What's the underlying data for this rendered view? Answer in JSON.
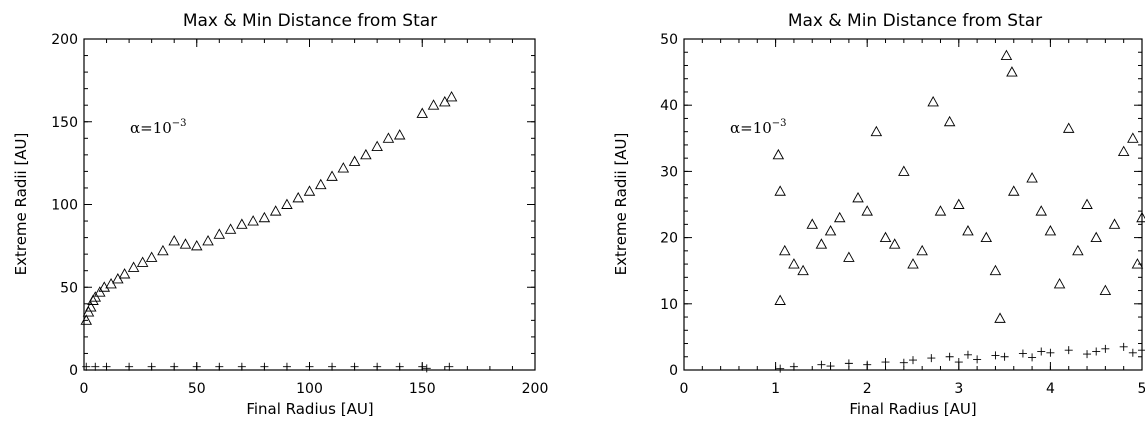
{
  "chart_data": [
    {
      "type": "scatter",
      "title": "Max & Min Distance from Star",
      "xlabel": "Final Radius [AU]",
      "ylabel": "Extreme Radii [AU]",
      "xlim": [
        0,
        200
      ],
      "ylim": [
        0,
        200
      ],
      "xticks": [
        "0",
        "50",
        "100",
        "150",
        "200"
      ],
      "yticks": [
        "0",
        "50",
        "100",
        "150",
        "200"
      ],
      "annotation": {
        "alpha": "α=10",
        "exponent": "−3"
      },
      "grid": false,
      "legend": "none",
      "series": [
        {
          "marker": "triangle",
          "x": [
            1,
            2,
            3,
            4,
            5,
            7,
            9,
            12,
            15,
            18,
            22,
            26,
            30,
            35,
            40,
            45,
            50,
            55,
            60,
            65,
            70,
            75,
            80,
            85,
            90,
            95,
            100,
            105,
            110,
            115,
            120,
            125,
            130,
            135,
            140,
            150,
            155,
            160,
            163
          ],
          "y": [
            30,
            35,
            38,
            42,
            44,
            47,
            50,
            52,
            55,
            58,
            62,
            65,
            68,
            72,
            78,
            76,
            75,
            78,
            82,
            85,
            88,
            90,
            92,
            96,
            100,
            104,
            108,
            112,
            117,
            122,
            126,
            130,
            135,
            140,
            142,
            155,
            160,
            162,
            165
          ]
        },
        {
          "marker": "plus",
          "x": [
            1,
            5,
            10,
            20,
            30,
            40,
            50,
            60,
            70,
            80,
            90,
            100,
            110,
            120,
            130,
            140,
            150,
            152,
            162
          ],
          "y": [
            2,
            2,
            2,
            2,
            2,
            2,
            2,
            2,
            2,
            2,
            2,
            2,
            2,
            2,
            2,
            2,
            2,
            1,
            2
          ]
        }
      ]
    },
    {
      "type": "scatter",
      "title": "Max & Min Distance from Star",
      "xlabel": "Final Radius [AU]",
      "ylabel": "Extreme Radii [AU]",
      "xlim": [
        0,
        5
      ],
      "ylim": [
        0,
        50
      ],
      "xticks": [
        "0",
        "1",
        "2",
        "3",
        "4",
        "5"
      ],
      "yticks": [
        "0",
        "10",
        "20",
        "30",
        "40",
        "50"
      ],
      "annotation": {
        "alpha": "α=10",
        "exponent": "−3"
      },
      "grid": false,
      "legend": "none",
      "series": [
        {
          "marker": "triangle",
          "x": [
            1.03,
            1.05,
            1.1,
            1.2,
            1.4,
            1.6,
            1.8,
            2.0,
            2.1,
            2.2,
            2.4,
            2.6,
            2.72,
            2.9,
            3.0,
            3.3,
            3.45,
            3.52,
            3.58,
            3.8,
            4.0,
            4.2,
            4.4,
            4.6,
            4.8,
            4.9,
            5.0,
            1.05,
            1.3,
            1.5,
            1.7,
            1.9,
            2.3,
            2.5,
            2.8,
            3.1,
            3.4,
            3.6,
            3.9,
            4.1,
            4.3,
            4.5,
            4.7,
            4.95
          ],
          "y": [
            32.5,
            27,
            18,
            16,
            22,
            21,
            17,
            24,
            36,
            20,
            30,
            18,
            40.5,
            37.5,
            25,
            20,
            7.8,
            47.5,
            45,
            29,
            21,
            36.5,
            25,
            12,
            33,
            35,
            23,
            10.5,
            15,
            19,
            23,
            26,
            19,
            16,
            24,
            21,
            15,
            27,
            24,
            13,
            18,
            20,
            22,
            16
          ]
        },
        {
          "marker": "plus",
          "x": [
            1.05,
            1.2,
            1.5,
            1.8,
            2.0,
            2.2,
            2.5,
            2.7,
            2.9,
            3.0,
            3.2,
            3.4,
            3.5,
            3.7,
            3.9,
            4.0,
            4.2,
            4.4,
            4.6,
            4.8,
            4.9,
            5.0,
            1.6,
            2.4,
            3.1,
            3.8,
            4.5
          ],
          "y": [
            0.2,
            0.5,
            0.8,
            1.0,
            0.8,
            1.2,
            1.5,
            1.8,
            2.0,
            1.2,
            1.6,
            2.2,
            2.0,
            2.5,
            2.8,
            2.6,
            3.0,
            2.4,
            3.2,
            3.5,
            2.6,
            3.0,
            0.6,
            1.1,
            2.3,
            1.9,
            2.8
          ]
        }
      ]
    }
  ]
}
